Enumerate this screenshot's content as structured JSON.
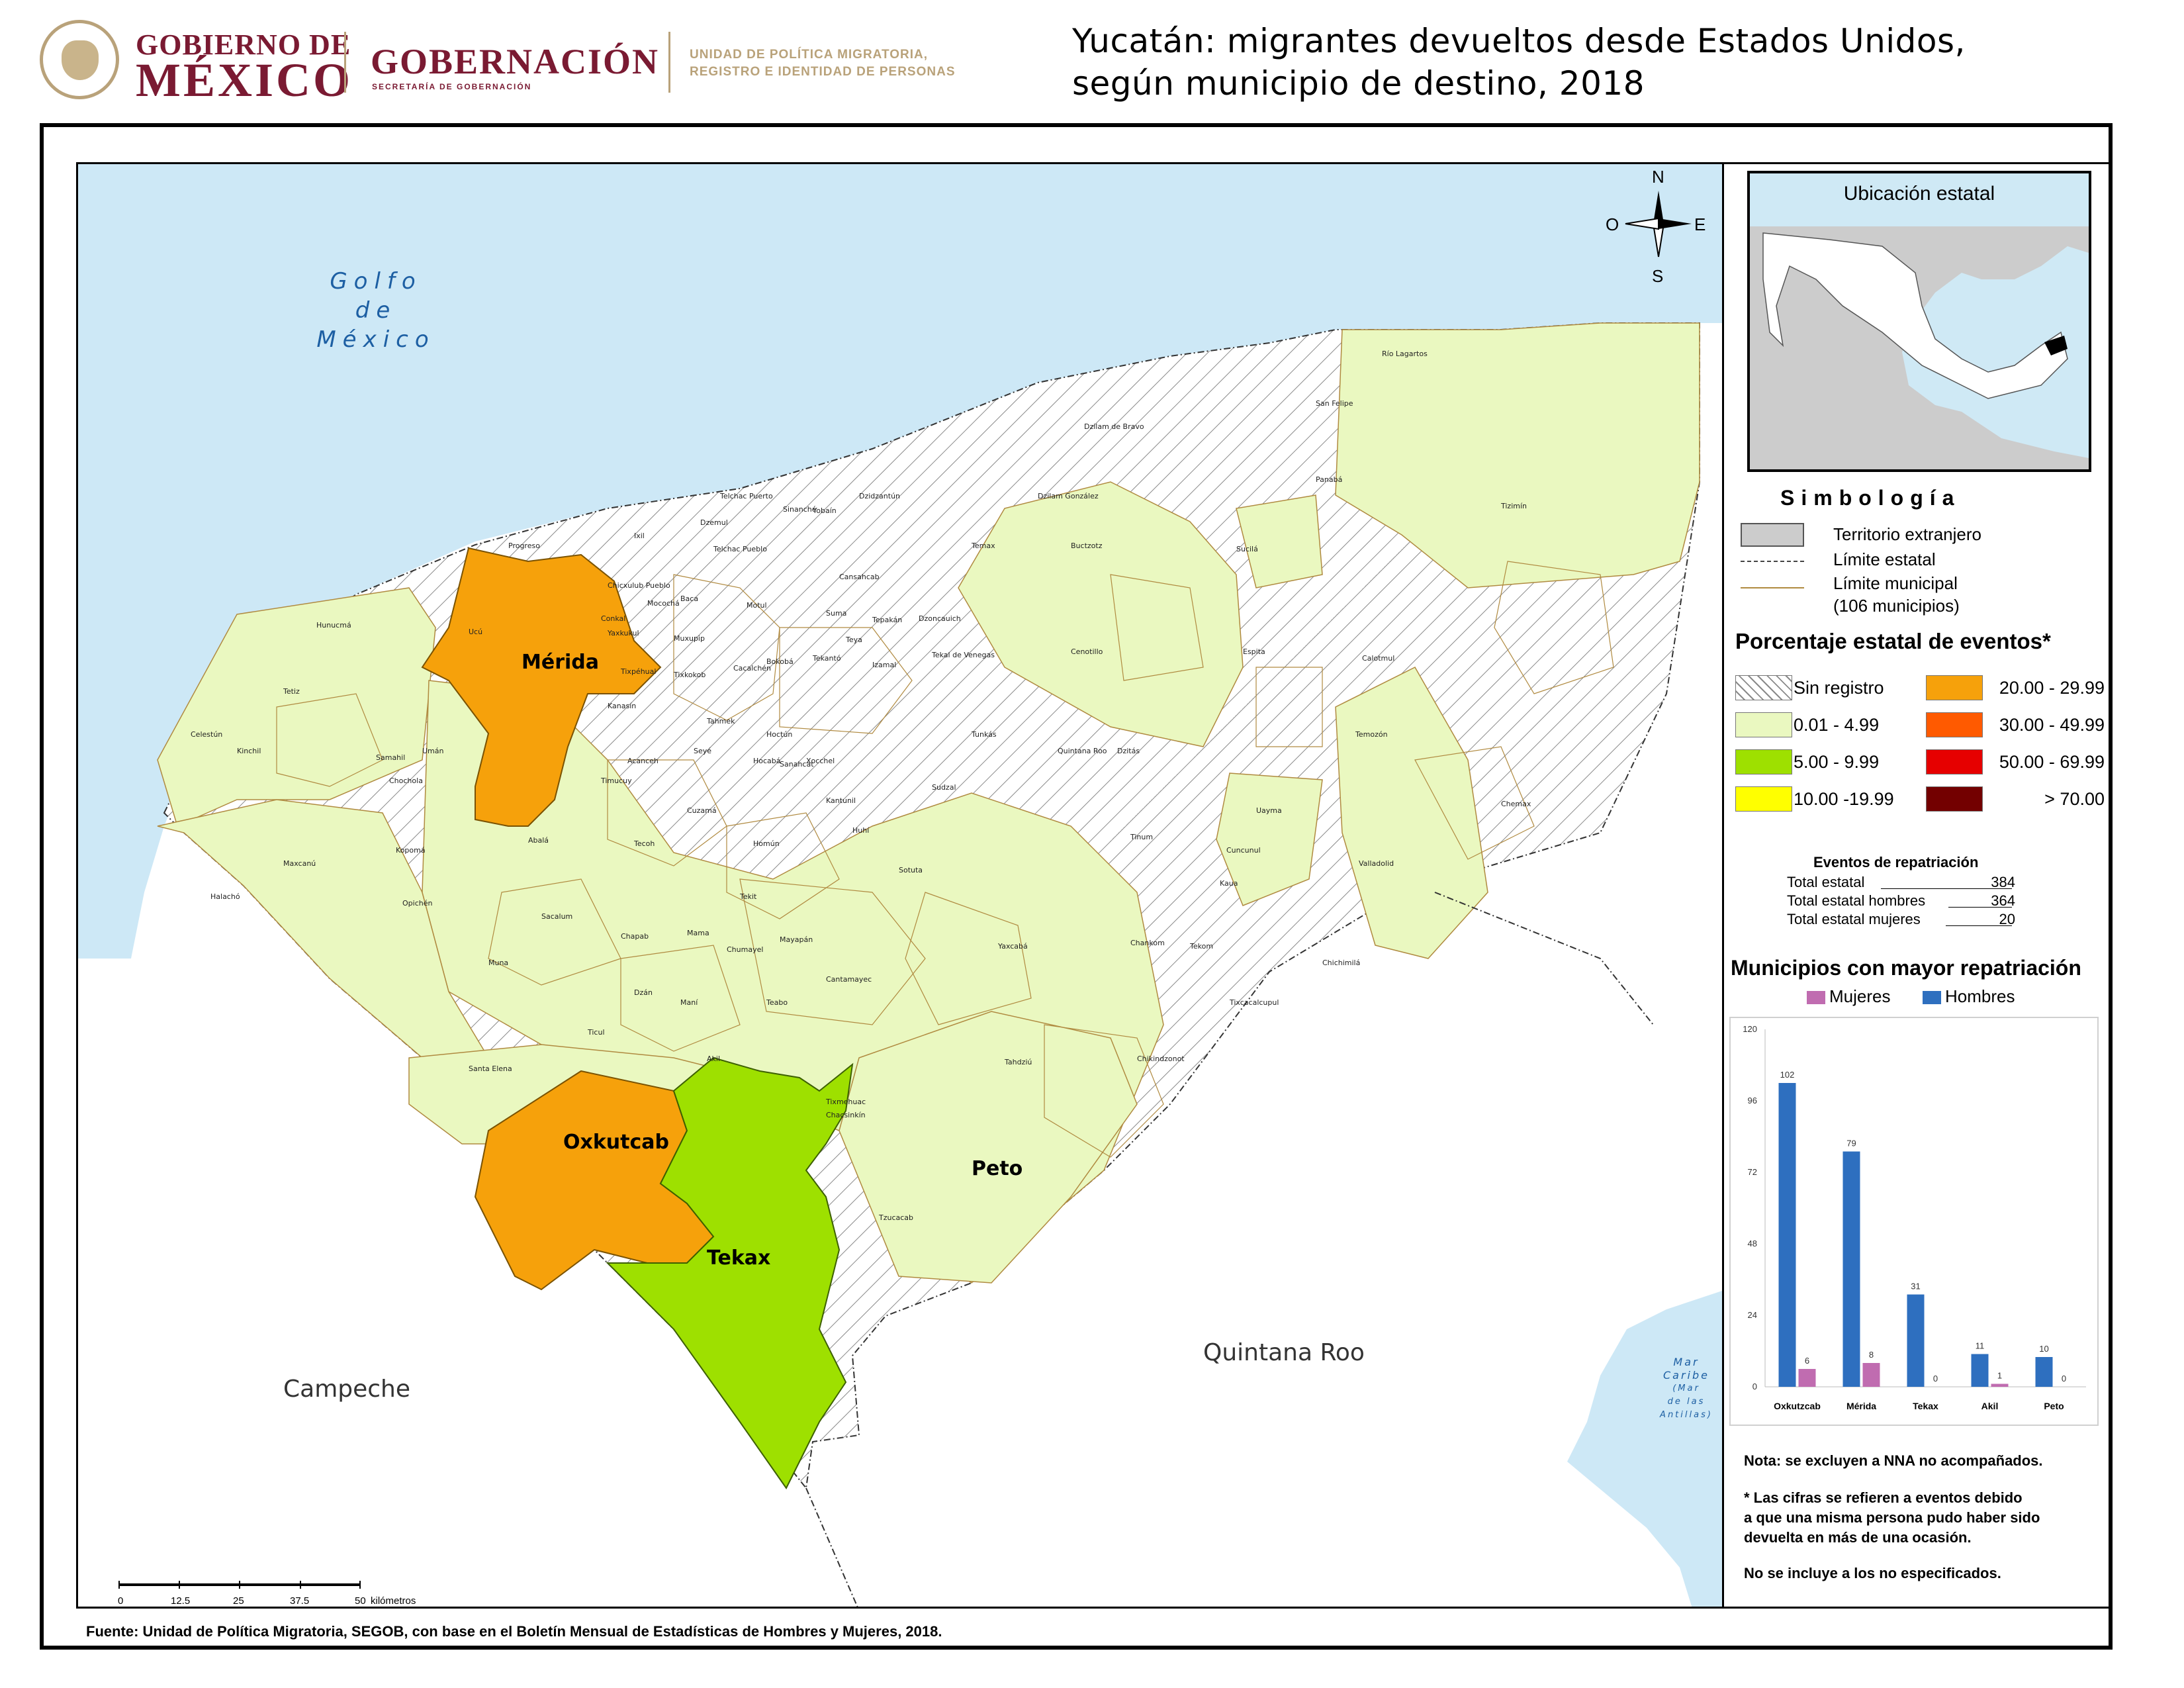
{
  "header": {
    "gob_line1": "GOBIERNO DE",
    "gob_line2": "MÉXICO",
    "gobernacion": "GOBERNACIÓN",
    "secretaria": "SECRETARÍA DE GOBERNACIÓN",
    "unidad": "UNIDAD DE POLÍTICA MIGRATORIA, REGISTRO E IDENTIDAD DE PERSONAS",
    "title_line1": "Yucatán: migrantes devueltos desde Estados Unidos,",
    "title_line2": "según municipio de destino, 2018"
  },
  "map": {
    "sea_label": [
      "Golfo",
      "de",
      "México"
    ],
    "neighbor_labels": {
      "campeche": "Campeche",
      "quintana_roo": "Quintana Roo"
    },
    "caribe_label": [
      "Mar",
      "Caribe"
    ],
    "caribe_sub": [
      "(Mar",
      "de las",
      "Antillas)"
    ],
    "highlighted": [
      {
        "name": "Mérida",
        "class": "20.00 - 29.99",
        "color": "#f6a10b"
      },
      {
        "name": "Oxkutcab",
        "class": "20.00 - 29.99",
        "color": "#f6a10b"
      },
      {
        "name": "Tekax",
        "class": "5.00 - 9.99",
        "color": "#9ee000"
      },
      {
        "name": "Peto",
        "class": "0.01 - 4.99",
        "color": "#eaf8c0"
      }
    ],
    "municipality_labels": [
      "Río Lagartos",
      "San Felipe",
      "Dzilam de Bravo",
      "Panabá",
      "Tizimín",
      "Dzilam González",
      "Telchac Puerto",
      "Sinanché",
      "Yobaín",
      "Dzidzantún",
      "Temax",
      "Buctzotz",
      "Sucilá",
      "Progreso",
      "Ixil",
      "Dzemul",
      "Telchac Pueblo",
      "Cansahcab",
      "Chicxulub Pueblo",
      "Mocochá",
      "Baca",
      "Motul",
      "Suma",
      "Tepakán",
      "Dzoncauich",
      "Hunucmá",
      "Ucú",
      "Conkal",
      "Yaxkukul",
      "Muxupip",
      "Teya",
      "Tekal de Venegas",
      "Cenotillo",
      "Espita",
      "Calotmul",
      "Tixpéhual",
      "Tixkokob",
      "Cacalchén",
      "Bokobá",
      "Tekantó",
      "Izamal",
      "Tetiz",
      "Kanasín",
      "Tahmek",
      "Hoctún",
      "Tunkás",
      "Quintana Roo",
      "Dzitás",
      "Temozón",
      "Celestún",
      "Kinchil",
      "Umán",
      "Samahil",
      "Acanceh",
      "Seyé",
      "Hocabá",
      "Xocchel",
      "Sudzal",
      "Timucuy",
      "Sanahcat",
      "Kantunil",
      "Chochola",
      "Cuzamá",
      "Uayma",
      "Chemax",
      "Huhí",
      "Tinum",
      "Abalá",
      "Kopomá",
      "Tecoh",
      "Homún",
      "Cuncunul",
      "Valladolid",
      "Maxcanú",
      "Sotuta",
      "Kaua",
      "Halachó",
      "Opichén",
      "Tekit",
      "Sacalum",
      "Chapab",
      "Mama",
      "Chumayel",
      "Mayapán",
      "Yaxcabá",
      "Chankom",
      "Tekom",
      "Muna",
      "Cantamayec",
      "Chichimilá",
      "Dzán",
      "Maní",
      "Teabo",
      "Tixcacalcupul",
      "Ticul",
      "Akil",
      "Tahdziú",
      "Chikindzonot",
      "Santa Elena",
      "Tixmehuac",
      "Chacsinkín",
      "Tzucacab"
    ],
    "compass": {
      "n": "N",
      "s": "S",
      "e": "E",
      "o": "O"
    },
    "scale_ticks": [
      "0",
      "12.5",
      "25",
      "37.5",
      "50"
    ],
    "scale_unit": "kilómetros"
  },
  "inset": {
    "title": "Ubicación estatal"
  },
  "legend": {
    "title": "Simbología",
    "items": [
      "Territorio extranjero",
      "Límite estatal",
      "Límite municipal",
      "(106 municipios)"
    ],
    "pct_title": "Porcentaje estatal de eventos*",
    "classes": [
      {
        "label": "Sin registro",
        "color": "hatch"
      },
      {
        "label": "0.01  - 4.99",
        "color": "#eaf8c0"
      },
      {
        "label": "5.00  - 9.99",
        "color": "#9ee000"
      },
      {
        "label": "10.00 -19.99",
        "color": "#ffff00"
      },
      {
        "label": "20.00 - 29.99",
        "color": "#f6a10b"
      },
      {
        "label": "30.00 - 49.99",
        "color": "#ff5a00"
      },
      {
        "label": "50.00 - 69.99",
        "color": "#e60000"
      },
      {
        "label": "> 70.00",
        "color": "#730000"
      }
    ]
  },
  "repatriation": {
    "title": "Eventos de repatriación",
    "rows": [
      {
        "label": "Total estatal",
        "value": "384"
      },
      {
        "label": "Total estatal hombres",
        "value": "364"
      },
      {
        "label": "Total estatal mujeres",
        "value": "20"
      }
    ]
  },
  "chart_data": {
    "type": "bar",
    "title": "Municipios con mayor repatriación",
    "categories": [
      "Oxkutzcab",
      "Mérida",
      "Tekax",
      "Akil",
      "Peto"
    ],
    "series": [
      {
        "name": "Mujeres",
        "color": "#c06cb0",
        "values": [
          6,
          8,
          0,
          1,
          0
        ]
      },
      {
        "name": "Hombres",
        "color": "#2e6fbf",
        "values": [
          102,
          79,
          31,
          11,
          10
        ]
      }
    ],
    "yticks": [
      0,
      24,
      48,
      72,
      96,
      120
    ],
    "ylim": [
      0,
      120
    ],
    "legend_position": "top",
    "grid": false
  },
  "notes": {
    "n1": "Nota: se excluyen a NNA no acompañados.",
    "n2a": "* Las cifras se refieren a eventos debido",
    "n2b": "a que una misma persona pudo haber sido",
    "n2c": "devuelta en más de una ocasión.",
    "n3": "No se incluye a los no especificados."
  },
  "source": "Fuente: Unidad de Política Migratoria, SEGOB, con base en el Boletín Mensual de Estadísticas de Hombres y Mujeres, 2018."
}
